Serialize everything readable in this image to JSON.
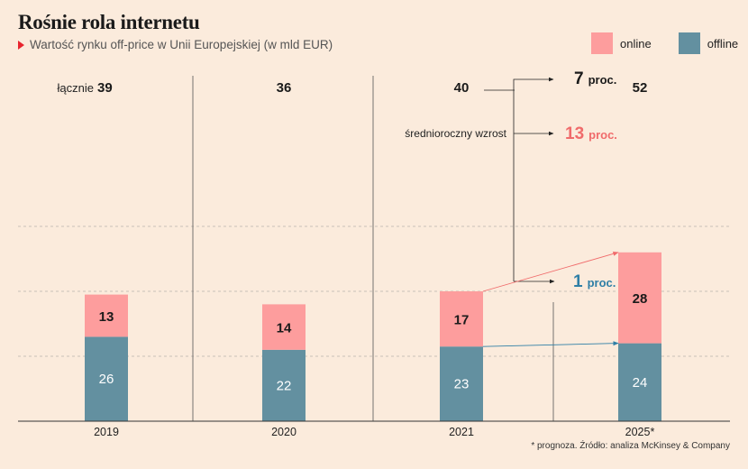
{
  "header": {
    "title": "Rośnie rola internetu",
    "subtitle": "Wartość rynku off-price w Unii Europejskiej (w mld EUR)"
  },
  "legend": {
    "online": "online",
    "offline": "offline"
  },
  "colors": {
    "online": "#fd9d9d",
    "offline": "#6390a0",
    "online_text": "#f06b6b",
    "offline_text": "#2f7fa6",
    "background": "#fbebdc"
  },
  "chart_data": {
    "type": "bar",
    "stacked": true,
    "categories": [
      "2019",
      "2020",
      "2021",
      "2025*"
    ],
    "series": [
      {
        "name": "offline",
        "values": [
          26,
          22,
          23,
          24
        ]
      },
      {
        "name": "online",
        "values": [
          13,
          14,
          17,
          28
        ]
      }
    ],
    "totals": [
      39,
      36,
      40,
      52
    ],
    "total_prefix": "łącznie",
    "growth_label": "średnioroczny wzrost",
    "growth": {
      "total": {
        "value": "7",
        "unit": "proc."
      },
      "online": {
        "value": "13",
        "unit": "proc."
      },
      "offline": {
        "value": "1",
        "unit": "proc."
      }
    },
    "ylim": [
      0,
      60
    ],
    "grid": true
  },
  "footnote": "* prognoza. Źródło: analiza McKinsey & Company"
}
